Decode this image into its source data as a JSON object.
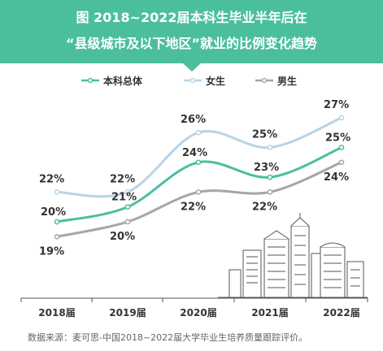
{
  "chart_data": {
    "type": "line",
    "title_line1": "图 2018~2022届本科生毕业半年后在",
    "title_line2": "“县级城市及以下地区”就业的比例变化趋势",
    "categories": [
      "2018届",
      "2019届",
      "2020届",
      "2021届",
      "2022届"
    ],
    "series": [
      {
        "name": "本科总体",
        "values": [
          20,
          21,
          24,
          23,
          25
        ],
        "labels": [
          "20%",
          "21%",
          "24%",
          "23%",
          "25%"
        ],
        "color": "#4bbf9d"
      },
      {
        "name": "女生",
        "values": [
          22,
          22,
          26,
          25,
          27
        ],
        "labels": [
          "22%",
          "22%",
          "26%",
          "25%",
          "27%"
        ],
        "color": "#b8d4e6"
      },
      {
        "name": "男生",
        "values": [
          19,
          20,
          22,
          22,
          24
        ],
        "labels": [
          "19%",
          "20%",
          "22%",
          "22%",
          "24%"
        ],
        "color": "#a6a6a6"
      }
    ],
    "legend_position": "top",
    "grid": false
  },
  "footer": "数据来源：麦可思-中国2018~2022届大学毕业生培养质量跟踪评价。",
  "colors": {
    "header_bg": "#4bbf9d",
    "axis": "#555555",
    "label_text": "#333333",
    "building_stroke": "#555555"
  }
}
